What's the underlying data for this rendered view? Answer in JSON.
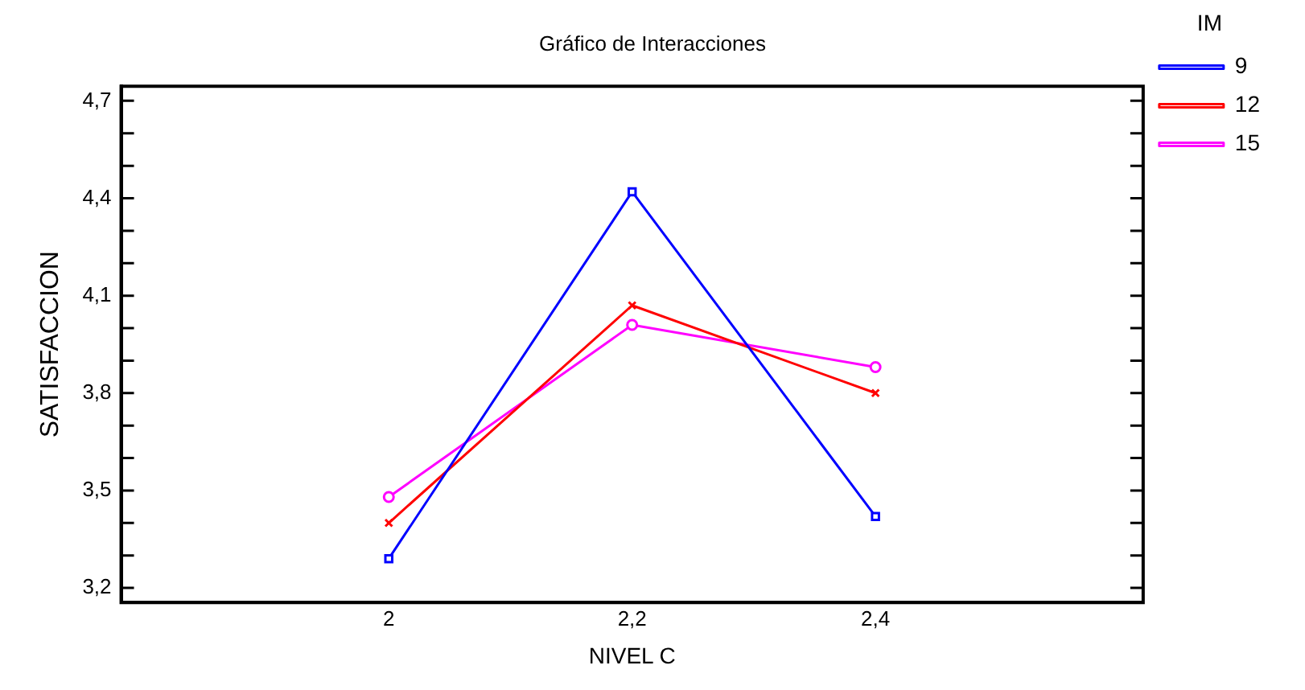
{
  "chart_data": {
    "type": "line",
    "title": "Gráfico de Interacciones",
    "xlabel": "NIVEL C",
    "ylabel": "SATISFACCION",
    "legend_title": "IM",
    "x": [
      2,
      2.2,
      2.4
    ],
    "xlim": [
      1.78,
      2.62
    ],
    "xticks": [
      {
        "value": 2,
        "label": "2"
      },
      {
        "value": 2.2,
        "label": "2,2"
      },
      {
        "value": 2.4,
        "label": "2,4"
      }
    ],
    "ylim": [
      3.155,
      4.745
    ],
    "yticks": [
      {
        "value": 3.2,
        "label": "3,2"
      },
      {
        "value": 3.3,
        "label": null
      },
      {
        "value": 3.4,
        "label": null
      },
      {
        "value": 3.5,
        "label": "3,5"
      },
      {
        "value": 3.6,
        "label": null
      },
      {
        "value": 3.7,
        "label": null
      },
      {
        "value": 3.8,
        "label": "3,8"
      },
      {
        "value": 3.9,
        "label": null
      },
      {
        "value": 4.0,
        "label": null
      },
      {
        "value": 4.1,
        "label": "4,1"
      },
      {
        "value": 4.2,
        "label": null
      },
      {
        "value": 4.3,
        "label": null
      },
      {
        "value": 4.4,
        "label": "4,4"
      },
      {
        "value": 4.5,
        "label": null
      },
      {
        "value": 4.6,
        "label": null
      },
      {
        "value": 4.7,
        "label": "4,7"
      }
    ],
    "grid": false,
    "legend": "top right",
    "line_style": "solid",
    "series": [
      {
        "name": "9",
        "color": "#0000ff",
        "marker": "square",
        "values": [
          3.29,
          4.42,
          3.42
        ]
      },
      {
        "name": "12",
        "color": "#ff0000",
        "marker": "cross",
        "values": [
          3.4,
          4.07,
          3.8
        ]
      },
      {
        "name": "15",
        "color": "#ff00ff",
        "marker": "circle",
        "values": [
          3.48,
          4.01,
          3.88
        ]
      }
    ]
  }
}
